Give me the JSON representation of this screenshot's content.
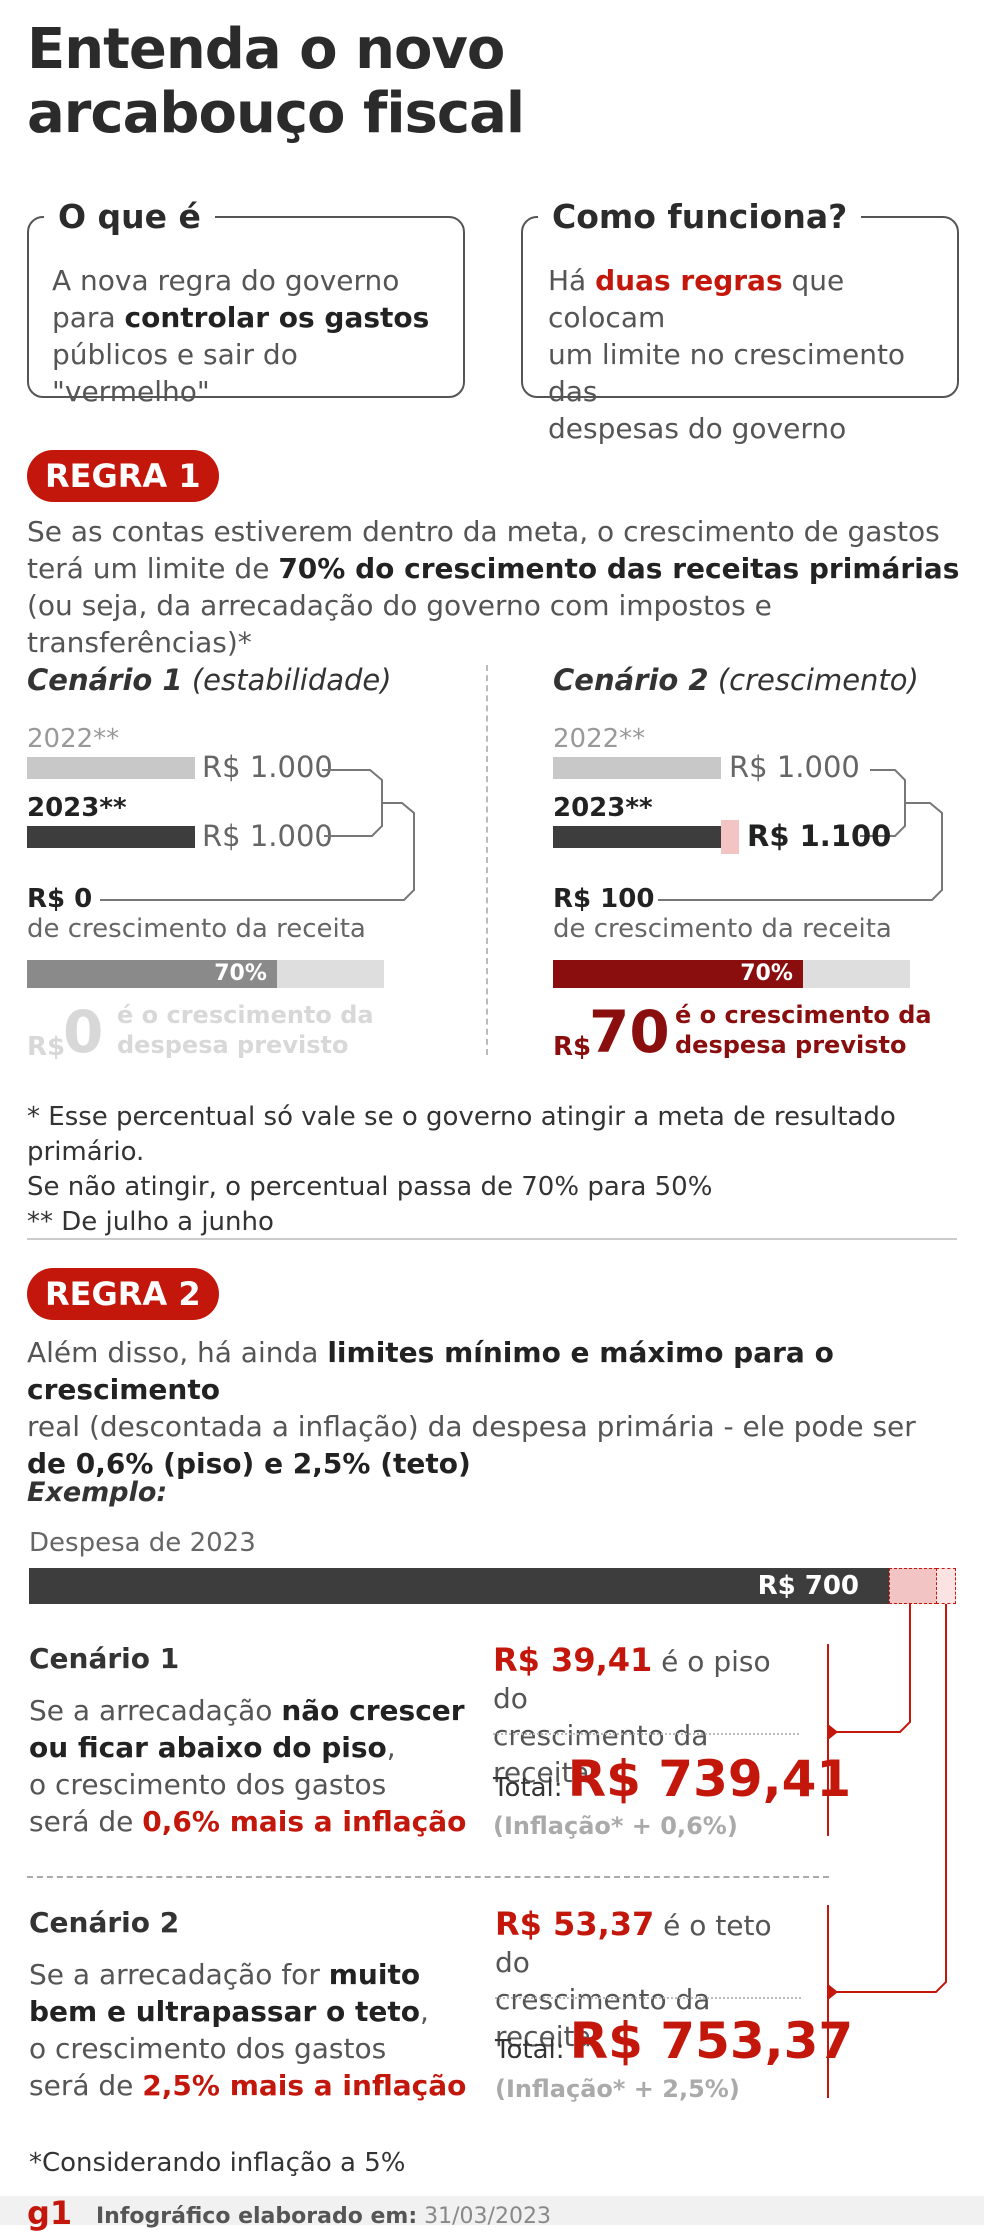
{
  "title": {
    "line1": "Entenda o novo",
    "line2": "arcabouço fiscal"
  },
  "card_what": {
    "heading": "O que é",
    "line1": "A nova regra do governo",
    "line2_pre": "para ",
    "line2_bold": "controlar os gastos",
    "line3": "públicos e sair do \"vermelho\""
  },
  "card_how": {
    "heading": "Como funciona?",
    "line1_pre": "Há ",
    "line1_bold": "duas regras",
    "line1_post": " que colocam",
    "line2": "um limite no crescimento das",
    "line3": "despesas do governo"
  },
  "rule1": {
    "badge": "REGRA 1",
    "line1": "Se as contas estiverem dentro da meta, o crescimento de gastos",
    "line2_pre": "terá um limite de ",
    "line2_bold": "70% do crescimento das receitas primárias",
    "line3": "(ou seja, da arrecadação do governo com impostos e transferências)*",
    "scenario1": {
      "title_bold": "Cenário 1",
      "title_rest": " (estabilidade)",
      "year_a": "2022**",
      "value_a": "R$ 1.000",
      "year_b": "2023**",
      "value_b": "R$ 1.000",
      "growth_value": "R$ 0",
      "growth_label": "de crescimento da receita",
      "pct_label": "70%",
      "result_prefix": "R$",
      "result_value": "0",
      "result_text1": "é o crescimento da",
      "result_text2": "despesa previsto",
      "pct_fill": 0.7
    },
    "scenario2": {
      "title_bold": "Cenário 2",
      "title_rest": " (crescimento)",
      "year_a": "2022**",
      "value_a": "R$ 1.000",
      "year_b": "2023**",
      "value_b": "R$ 1.100",
      "growth_value": "R$ 100",
      "growth_label": "de crescimento da receita",
      "pct_label": "70%",
      "result_prefix": "R$",
      "result_value": "70",
      "result_text1": "é o crescimento da",
      "result_text2": "despesa previsto",
      "pct_fill": 0.7
    },
    "note1": "* Esse percentual só vale se o governo atingir a meta de resultado primário.",
    "note2": "Se não atingir, o percentual passa de 70% para 50%",
    "note3": "** De julho a junho"
  },
  "rule2": {
    "badge": "REGRA 2",
    "line1_pre": "Além disso, há ainda ",
    "line1_bold": "limites mínimo e máximo para o crescimento",
    "line2": "real (descontada a inflação) da despesa primária - ele pode ser",
    "line3_bold": "de 0,6% (piso) e 2,5% (teto)",
    "example_label": "Exemplo:",
    "expense_label": "Despesa de 2023",
    "expense_value": "R$ 700",
    "scenario1": {
      "title": "Cenário 1",
      "l1_pre": "Se a arrecadação ",
      "l1_bold": "não crescer",
      "l2_bold": "ou ficar abaixo do piso",
      "l2_post": ",",
      "l3": "o crescimento dos gastos",
      "l4_pre": "será de ",
      "l4_red": "0,6% mais a inflação",
      "amount": "R$ 39,41",
      "amount_text": " é o piso do",
      "amount_text2": "crescimento da receita",
      "total_label": "Total:",
      "total_value": "R$ 739,41",
      "formula": "(Inflação* + 0,6%)"
    },
    "scenario2": {
      "title": "Cenário 2",
      "l1_pre": "Se a arrecadação for ",
      "l1_bold": "muito",
      "l2_bold": "bem e ultrapassar o teto",
      "l2_post": ",",
      "l3": "o crescimento dos gastos",
      "l4_pre": "será de ",
      "l4_red": "2,5% mais a inflação",
      "amount": "R$ 53,37",
      "amount_text": " é o teto do",
      "amount_text2": "crescimento da receita",
      "total_label": "Total:",
      "total_value": "R$ 753,37",
      "formula": "(Inflação* + 2,5%)"
    },
    "footnote": "*Considerando inflação a 5%"
  },
  "footer": {
    "logo": "g1",
    "credit_label": "Infográfico elaborado em:",
    "credit_date": "31/03/2023"
  },
  "colors": {
    "accent": "#c4170c",
    "dark_bar": "#3d3d3d",
    "light_bar": "#c8c8c8",
    "pink": "#f2c4c4"
  }
}
